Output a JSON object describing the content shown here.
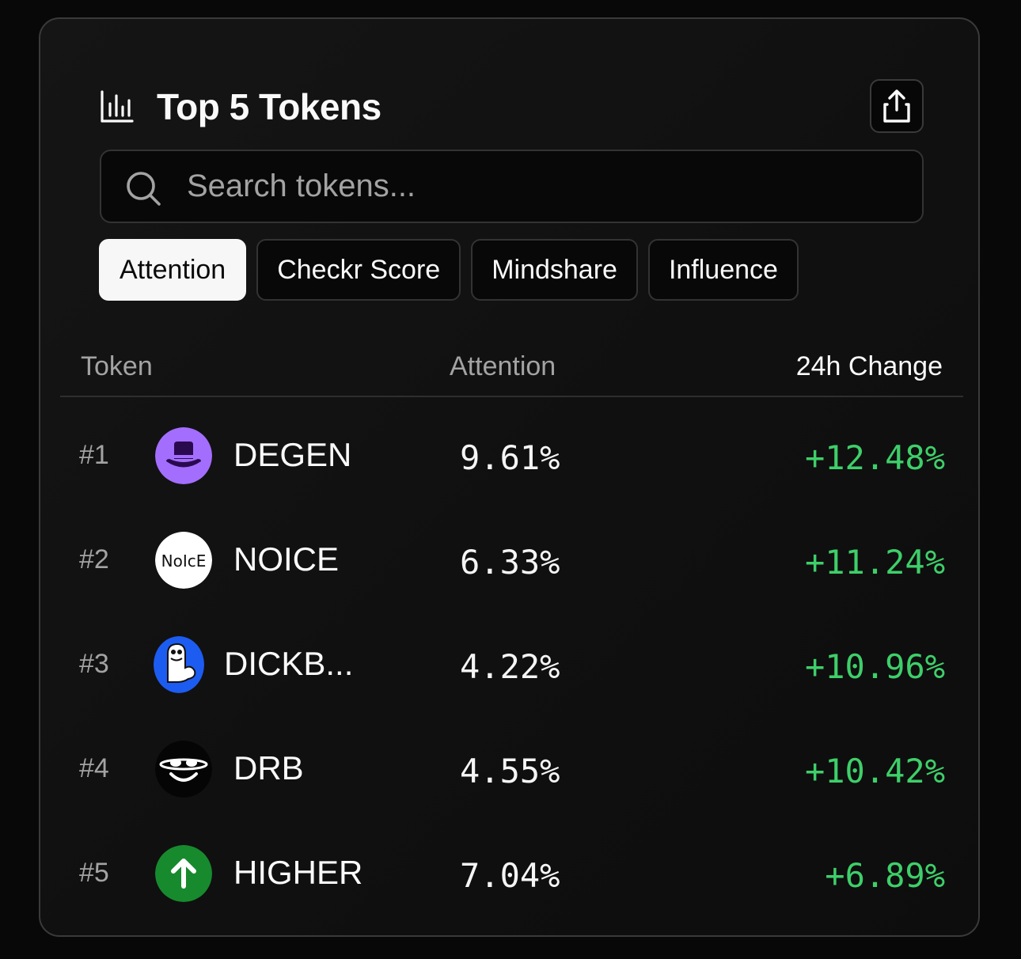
{
  "colors": {
    "background": "#080808",
    "card": "#121212",
    "positive": "#3ecf6a",
    "active_tab_bg": "#f7f7f7",
    "degen": "#a36efd",
    "dickbutt": "#1d5cf0",
    "higher": "#178a2e"
  },
  "header": {
    "icon": "bar-chart-icon",
    "title": "Top 5 Tokens",
    "share_icon": "share-icon"
  },
  "search": {
    "icon": "search-icon",
    "placeholder": "Search tokens...",
    "value": ""
  },
  "tabs": [
    {
      "label": "Attention",
      "active": true
    },
    {
      "label": "Checkr Score",
      "active": false
    },
    {
      "label": "Mindshare",
      "active": false
    },
    {
      "label": "Influence",
      "active": false
    }
  ],
  "table": {
    "columns": {
      "token": "Token",
      "attention": "Attention",
      "change": "24h Change"
    },
    "rows": [
      {
        "rank": "#1",
        "symbol": "DEGEN",
        "avatar": "top-hat-icon",
        "attention": "9.61%",
        "change": "+12.48%"
      },
      {
        "rank": "#2",
        "symbol": "NOICE",
        "avatar": "noice-logo",
        "avatar_text": "NoIcE",
        "attention": "6.33%",
        "change": "+11.24%"
      },
      {
        "rank": "#3",
        "symbol": "DICKB...",
        "avatar": "dickbutt-icon",
        "attention": "4.22%",
        "change": "+10.96%"
      },
      {
        "rank": "#4",
        "symbol": "DRB",
        "avatar": "smiley-planet-icon",
        "attention": "4.55%",
        "change": "+10.42%"
      },
      {
        "rank": "#5",
        "symbol": "HIGHER",
        "avatar": "arrow-up-icon",
        "attention": "7.04%",
        "change": "+6.89%"
      }
    ]
  }
}
